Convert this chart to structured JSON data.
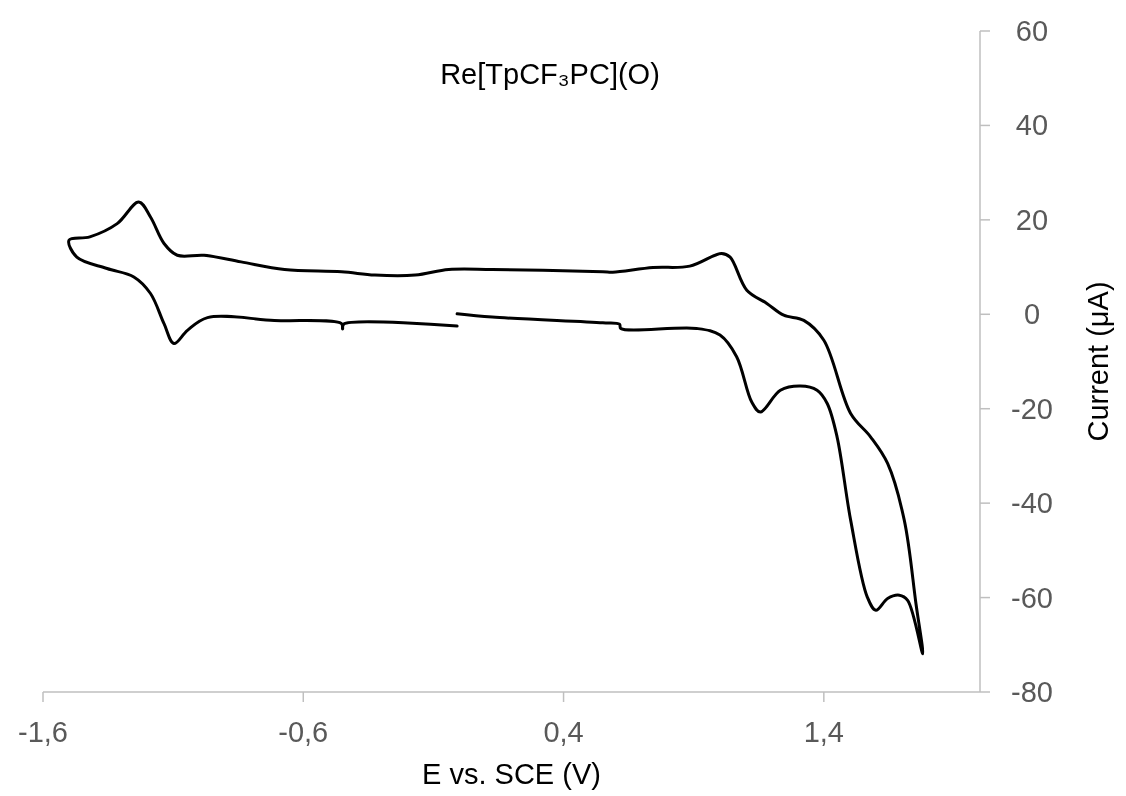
{
  "chart_data": {
    "type": "line",
    "title": "Re[TpCF₃PC](O)",
    "xlabel": "E vs. SCE (V)",
    "ylabel": "Current (μA)",
    "xlim": [
      -1.6,
      2.0
    ],
    "xticks": [
      {
        "value": -1.6,
        "label": "-1,6"
      },
      {
        "value": -0.6,
        "label": "-0,6"
      },
      {
        "value": 0.4,
        "label": "0,4"
      },
      {
        "value": 1.4,
        "label": "1,4"
      }
    ],
    "ylim": [
      -80,
      60
    ],
    "yticks": [
      -80,
      -60,
      -40,
      -20,
      0,
      20,
      40,
      60
    ],
    "grid": false,
    "marker": "none",
    "line_style": "solid",
    "series": [
      {
        "color": "#000000",
        "x": [
          -0.009,
          0.126,
          0.551,
          0.615,
          0.62,
          0.911,
          1.001,
          1.065,
          1.123,
          1.156,
          1.233,
          1.31,
          1.374,
          1.413,
          1.451,
          1.503,
          1.567,
          1.6,
          1.645,
          1.69,
          1.722,
          1.78,
          1.754,
          1.709,
          1.645,
          1.58,
          1.503,
          1.4,
          1.323,
          1.246,
          1.181,
          1.104,
          1.04,
          1.007,
          0.885,
          0.744,
          0.589,
          0.551,
          0.126,
          -0.041,
          -0.17,
          -0.325,
          -0.453,
          -0.672,
          -0.839,
          -0.981,
          -1.084,
          -1.135,
          -1.187,
          -1.232,
          -1.315,
          -1.42,
          -1.5,
          -1.47,
          -1.354,
          -1.251,
          -1.187,
          -1.135,
          -1.097,
          -1.045,
          -0.968,
          -0.711,
          -0.453,
          -0.449,
          -0.445,
          -0.009
        ],
        "values": [
          0.1,
          -0.6,
          -1.8,
          -2.1,
          -3.0,
          -3.0,
          -4.4,
          -9.0,
          -18.6,
          -20.7,
          -16.1,
          -15.2,
          -16.1,
          -18.9,
          -26.0,
          -43.6,
          -59.9,
          -62.7,
          -60.2,
          -59.5,
          -60.6,
          -71.9,
          -61.3,
          -43.6,
          -31.6,
          -26.0,
          -21.0,
          -5.5,
          -1.3,
          -0.2,
          2.3,
          5.1,
          12.1,
          12.9,
          10.2,
          9.9,
          8.9,
          9.0,
          9.5,
          9.5,
          8.3,
          8.3,
          9.0,
          9.5,
          11.1,
          12.5,
          12.5,
          15.0,
          20.6,
          23.8,
          19.2,
          16.4,
          15.7,
          12.1,
          9.7,
          7.9,
          4.4,
          -2.0,
          -6.2,
          -3.4,
          -0.7,
          -1.3,
          -2.0,
          -3.1,
          -2.1,
          -2.5
        ]
      }
    ]
  }
}
